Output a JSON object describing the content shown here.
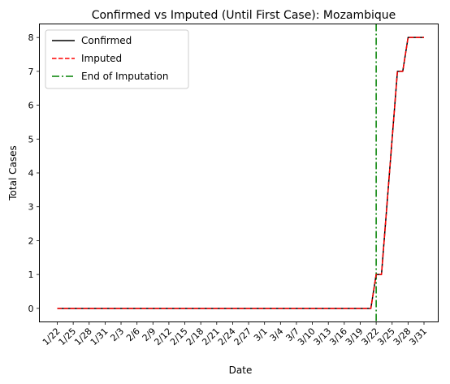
{
  "chart_data": {
    "type": "line",
    "title": "Confirmed vs Imputed (Until First Case): Mozambique",
    "xlabel": "Date",
    "ylabel": "Total Cases",
    "x": [
      "1/22",
      "1/23",
      "1/24",
      "1/25",
      "1/26",
      "1/27",
      "1/28",
      "1/29",
      "1/30",
      "1/31",
      "2/1",
      "2/2",
      "2/3",
      "2/4",
      "2/5",
      "2/6",
      "2/7",
      "2/8",
      "2/9",
      "2/10",
      "2/11",
      "2/12",
      "2/13",
      "2/14",
      "2/15",
      "2/16",
      "2/17",
      "2/18",
      "2/19",
      "2/20",
      "2/21",
      "2/22",
      "2/23",
      "2/24",
      "2/25",
      "2/26",
      "2/27",
      "2/28",
      "2/29",
      "3/1",
      "3/2",
      "3/3",
      "3/4",
      "3/5",
      "3/6",
      "3/7",
      "3/8",
      "3/9",
      "3/10",
      "3/11",
      "3/12",
      "3/13",
      "3/14",
      "3/15",
      "3/16",
      "3/17",
      "3/18",
      "3/19",
      "3/20",
      "3/21",
      "3/22",
      "3/23",
      "3/24",
      "3/25",
      "3/26",
      "3/27",
      "3/28",
      "3/29",
      "3/30",
      "3/31"
    ],
    "x_tick_labels": [
      "1/22",
      "1/25",
      "1/28",
      "1/31",
      "2/3",
      "2/6",
      "2/9",
      "2/12",
      "2/15",
      "2/18",
      "2/21",
      "2/24",
      "2/27",
      "3/1",
      "3/4",
      "3/7",
      "3/10",
      "3/13",
      "3/16",
      "3/19",
      "3/22",
      "3/25",
      "3/28",
      "3/31"
    ],
    "y_ticks": [
      "0",
      "1",
      "2",
      "3",
      "4",
      "5",
      "6",
      "7",
      "8"
    ],
    "ylim": [
      -0.4,
      8.4
    ],
    "series": [
      {
        "name": "Confirmed",
        "color": "#000000",
        "style": "solid",
        "values": [
          0,
          0,
          0,
          0,
          0,
          0,
          0,
          0,
          0,
          0,
          0,
          0,
          0,
          0,
          0,
          0,
          0,
          0,
          0,
          0,
          0,
          0,
          0,
          0,
          0,
          0,
          0,
          0,
          0,
          0,
          0,
          0,
          0,
          0,
          0,
          0,
          0,
          0,
          0,
          0,
          0,
          0,
          0,
          0,
          0,
          0,
          0,
          0,
          0,
          0,
          0,
          0,
          0,
          0,
          0,
          0,
          0,
          0,
          0,
          0,
          1,
          1,
          3,
          5,
          7,
          7,
          8,
          8,
          8,
          8
        ]
      },
      {
        "name": "Imputed",
        "color": "#ff0000",
        "style": "dashed",
        "values": [
          0,
          0,
          0,
          0,
          0,
          0,
          0,
          0,
          0,
          0,
          0,
          0,
          0,
          0,
          0,
          0,
          0,
          0,
          0,
          0,
          0,
          0,
          0,
          0,
          0,
          0,
          0,
          0,
          0,
          0,
          0,
          0,
          0,
          0,
          0,
          0,
          0,
          0,
          0,
          0,
          0,
          0,
          0,
          0,
          0,
          0,
          0,
          0,
          0,
          0,
          0,
          0,
          0,
          0,
          0,
          0,
          0,
          0,
          0,
          0,
          1,
          1,
          3,
          5,
          7,
          7,
          8,
          8,
          8,
          8
        ]
      }
    ],
    "vline": {
      "name": "End of Imputation",
      "x": "3/22",
      "color": "#008000",
      "style": "dashdot"
    },
    "legend": "top-left",
    "grid": false
  }
}
